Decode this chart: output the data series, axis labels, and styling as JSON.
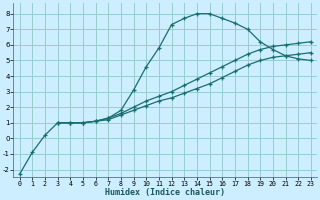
{
  "xlabel": "Humidex (Indice chaleur)",
  "background_color": "#cceeff",
  "grid_color": "#99cccc",
  "line_color": "#1a6e6e",
  "xlim": [
    -0.5,
    23.5
  ],
  "ylim": [
    -2.5,
    8.7
  ],
  "xticks": [
    0,
    1,
    2,
    3,
    4,
    5,
    6,
    7,
    8,
    9,
    10,
    11,
    12,
    13,
    14,
    15,
    16,
    17,
    18,
    19,
    20,
    21,
    22,
    23
  ],
  "yticks": [
    -2,
    -1,
    0,
    1,
    2,
    3,
    4,
    5,
    6,
    7,
    8
  ],
  "line1_x": [
    0,
    1,
    2,
    3,
    4,
    5,
    6,
    7,
    8,
    9,
    10,
    11,
    12,
    13,
    14,
    15,
    16,
    17,
    18,
    19,
    20,
    21,
    22,
    23
  ],
  "line1_y": [
    -2.3,
    -0.9,
    0.2,
    1.0,
    1.0,
    1.0,
    1.1,
    1.3,
    1.8,
    3.1,
    4.6,
    5.8,
    7.3,
    7.7,
    8.0,
    8.0,
    7.7,
    7.4,
    7.0,
    6.2,
    5.7,
    5.3,
    5.1,
    5.0
  ],
  "line2_x": [
    3,
    4,
    5,
    6,
    7,
    8,
    9,
    10,
    11,
    12,
    13,
    14,
    15,
    16,
    17,
    18,
    19,
    20,
    21,
    22,
    23
  ],
  "line2_y": [
    1.0,
    1.0,
    1.0,
    1.1,
    1.3,
    1.6,
    2.0,
    2.4,
    2.7,
    3.0,
    3.4,
    3.8,
    4.2,
    4.6,
    5.0,
    5.4,
    5.7,
    5.9,
    6.0,
    6.1,
    6.2
  ],
  "line3_x": [
    3,
    4,
    5,
    6,
    7,
    8,
    9,
    10,
    11,
    12,
    13,
    14,
    15,
    16,
    17,
    18,
    19,
    20,
    21,
    22,
    23
  ],
  "line3_y": [
    1.0,
    1.0,
    1.0,
    1.1,
    1.2,
    1.5,
    1.8,
    2.1,
    2.4,
    2.6,
    2.9,
    3.2,
    3.5,
    3.9,
    4.3,
    4.7,
    5.0,
    5.2,
    5.3,
    5.4,
    5.5
  ]
}
